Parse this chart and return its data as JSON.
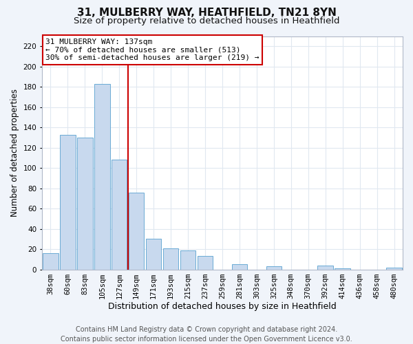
{
  "title": "31, MULBERRY WAY, HEATHFIELD, TN21 8YN",
  "subtitle": "Size of property relative to detached houses in Heathfield",
  "xlabel": "Distribution of detached houses by size in Heathfield",
  "ylabel": "Number of detached properties",
  "bin_labels": [
    "38sqm",
    "60sqm",
    "83sqm",
    "105sqm",
    "127sqm",
    "149sqm",
    "171sqm",
    "193sqm",
    "215sqm",
    "237sqm",
    "259sqm",
    "281sqm",
    "303sqm",
    "325sqm",
    "348sqm",
    "370sqm",
    "392sqm",
    "414sqm",
    "436sqm",
    "458sqm",
    "480sqm"
  ],
  "bar_heights": [
    16,
    133,
    130,
    183,
    108,
    76,
    30,
    21,
    19,
    13,
    0,
    5,
    0,
    3,
    0,
    0,
    4,
    1,
    0,
    0,
    2
  ],
  "bar_color": "#c8d9ee",
  "bar_edge_color": "#6aaad4",
  "vline_x": 4.5,
  "vline_color": "#cc0000",
  "ylim": [
    0,
    230
  ],
  "yticks": [
    0,
    20,
    40,
    60,
    80,
    100,
    120,
    140,
    160,
    180,
    200,
    220
  ],
  "annotation_line1": "31 MULBERRY WAY: 137sqm",
  "annotation_line2": "← 70% of detached houses are smaller (513)",
  "annotation_line3": "30% of semi-detached houses are larger (219) →",
  "annotation_box_color": "#ffffff",
  "annotation_box_edge_color": "#cc0000",
  "footer_line1": "Contains HM Land Registry data © Crown copyright and database right 2024.",
  "footer_line2": "Contains public sector information licensed under the Open Government Licence v3.0.",
  "plot_bg_color": "#ffffff",
  "fig_bg_color": "#f0f4fa",
  "grid_color": "#e0e8f0",
  "title_fontsize": 11,
  "subtitle_fontsize": 9.5,
  "xlabel_fontsize": 9,
  "ylabel_fontsize": 8.5,
  "tick_fontsize": 7.5,
  "annot_fontsize": 8,
  "footer_fontsize": 7
}
